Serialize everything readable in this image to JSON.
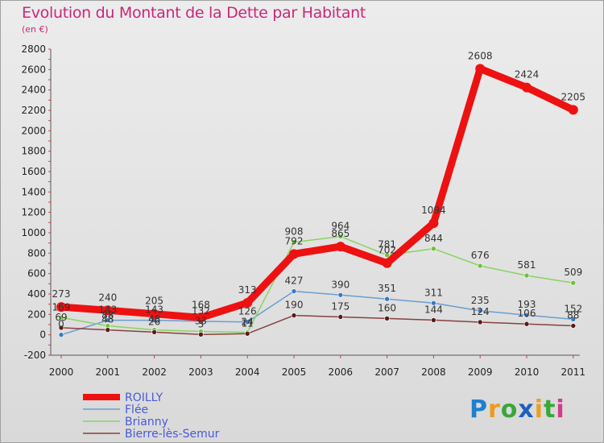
{
  "title": "Evolution du Montant de la Dette par Habitant",
  "subtitle": "(en €)",
  "logo": {
    "letters": [
      "P",
      "r",
      "o",
      "x",
      "i",
      "t",
      "i"
    ],
    "colors": [
      "#1e7fd0",
      "#f09a1a",
      "#3aa63a",
      "#1e5fc0",
      "#e8a020",
      "#3aa63a",
      "#d23c8c"
    ]
  },
  "chart_data": {
    "type": "line",
    "categories": [
      "2000",
      "2001",
      "2002",
      "2003",
      "2004",
      "2005",
      "2006",
      "2007",
      "2008",
      "2009",
      "2010",
      "2011"
    ],
    "ylim": [
      -200,
      2800
    ],
    "yticks": [
      -200,
      0,
      200,
      400,
      600,
      800,
      1000,
      1200,
      1400,
      1600,
      1800,
      2000,
      2200,
      2400,
      2600,
      2800
    ],
    "grid": false,
    "legend": "bottom-left",
    "series": [
      {
        "name": "ROILLY",
        "color": "#ee1111",
        "lineWidth": 9,
        "markerRadius": 6,
        "values": [
          273,
          240,
          205,
          168,
          313,
          792,
          865,
          702,
          1094,
          2608,
          2424,
          2205
        ],
        "labels": [
          "273",
          "240",
          "205",
          "168",
          "313",
          "792",
          "865",
          "702",
          "1094",
          "2608",
          "2424",
          "2205"
        ]
      },
      {
        "name": "Flée",
        "color": "#6a9ed0",
        "marker": "#3a7ac0",
        "lineWidth": 1.5,
        "markerRadius": 3,
        "values": [
          0,
          143,
          143,
          132,
          126,
          427,
          390,
          351,
          311,
          235,
          193,
          152
        ],
        "labels": [
          "0",
          "143",
          "143",
          "132",
          "126",
          "427",
          "390",
          "351",
          "311",
          "235",
          "193",
          "152"
        ]
      },
      {
        "name": "Brianny",
        "color": "#88d460",
        "marker": "#70c040",
        "lineWidth": 1.5,
        "markerRadius": 3,
        "values": [
          169,
          88,
          48,
          33,
          24,
          908,
          964,
          781,
          844,
          676,
          581,
          509
        ],
        "labels": [
          "169",
          "88",
          "48",
          "33",
          "24",
          "908",
          "964",
          "781",
          "844",
          "676",
          "581",
          "509"
        ]
      },
      {
        "name": "Bierre-lès-Semur",
        "color": "#8a4040",
        "marker": "#5a1a1a",
        "lineWidth": 1.5,
        "markerRadius": 3,
        "values": [
          69,
          48,
          26,
          3,
          11,
          190,
          175,
          160,
          144,
          124,
          106,
          88
        ],
        "labels": [
          "69",
          "48",
          "26",
          "3",
          "11",
          "190",
          "175",
          "160",
          "144",
          "124",
          "106",
          "88"
        ]
      }
    ]
  }
}
